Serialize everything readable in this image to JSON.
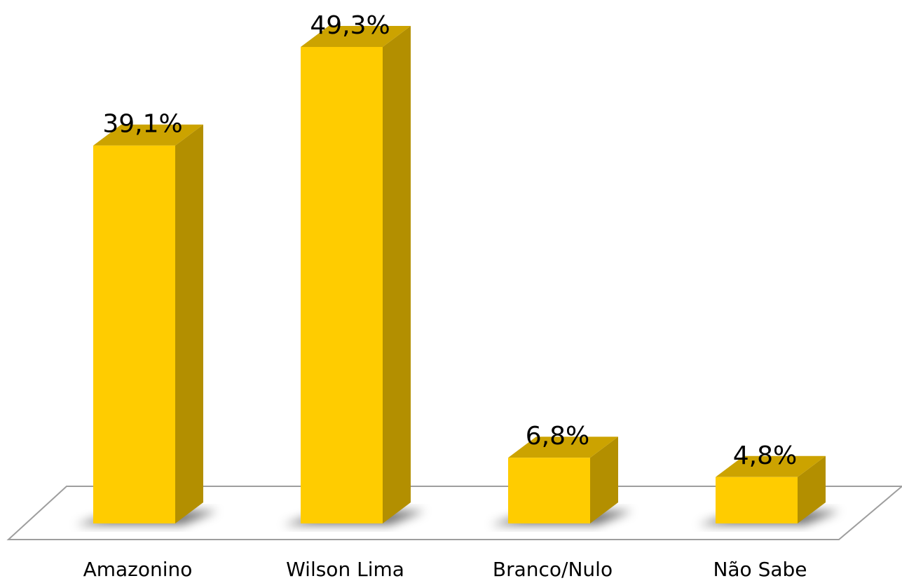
{
  "chart_data": {
    "type": "bar",
    "categories": [
      "Amazonino",
      "Wilson Lima",
      "Branco/Nulo",
      "Não Sabe"
    ],
    "values": [
      39.1,
      49.3,
      6.8,
      4.8
    ],
    "value_labels": [
      "39,1%",
      "49,3%",
      "6,8%",
      "4,8%"
    ],
    "title": "",
    "xlabel": "",
    "ylabel": "",
    "ylim": [
      0,
      50
    ],
    "grid": false,
    "legend": "none",
    "style": "3d-column",
    "colors": {
      "bar_front": "#FFCC00",
      "bar_side": "#B38F00",
      "bar_top": "#CCA300",
      "floor_stroke": "#9E9E9E"
    }
  }
}
